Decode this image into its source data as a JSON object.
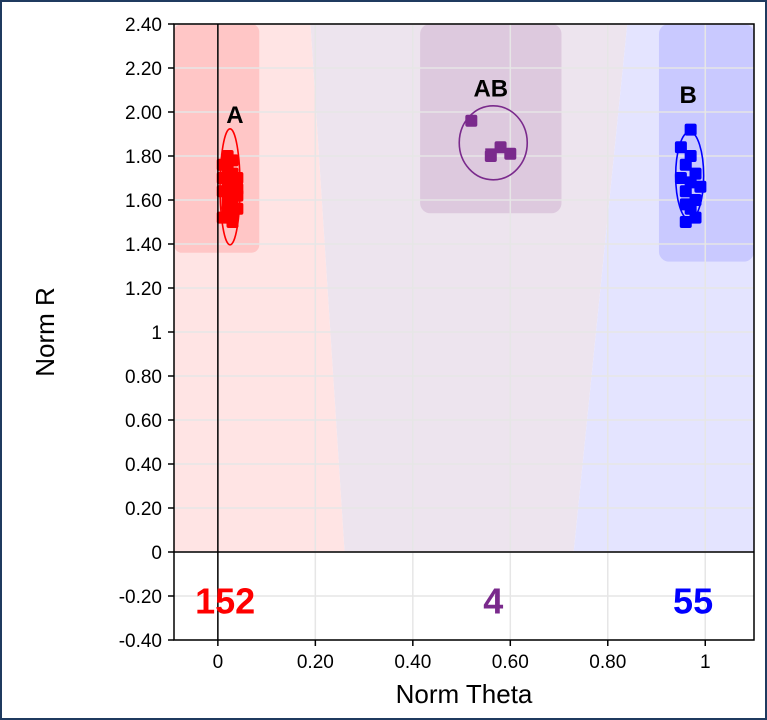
{
  "chart_data": {
    "type": "scatter",
    "xlabel": "Norm Theta",
    "ylabel": "Norm R",
    "xlim": [
      -0.09,
      1.1
    ],
    "ylim": [
      -0.4,
      2.4
    ],
    "x_ticks": [
      "0",
      "0.20",
      "0.40",
      "0.60",
      "0.80",
      "1"
    ],
    "y_ticks": [
      "2.40",
      "2.20",
      "2.00",
      "1.80",
      "1.60",
      "1.40",
      "1.20",
      "1",
      "0.80",
      "0.60",
      "0.40",
      "0.20",
      "0",
      "-0.20",
      "-0.40"
    ],
    "grid": true,
    "colors": {
      "A": "#ff0000",
      "AB": "#7a2a8c",
      "B": "#0000ff",
      "region_A": "#ffe4e4",
      "region_AB": "#ede4ee",
      "region_B": "#e4e4ff",
      "highlight_A": "#ffc6c6",
      "highlight_AB": "#ddc9de",
      "highlight_B": "#c9c9ff"
    },
    "clusters": [
      {
        "name": "A",
        "label": "A",
        "count": "152",
        "points": [
          [
            0.01,
            1.52
          ],
          [
            0.02,
            1.55
          ],
          [
            0.03,
            1.6
          ],
          [
            0.01,
            1.64
          ],
          [
            0.02,
            1.68
          ],
          [
            0.03,
            1.72
          ],
          [
            0.01,
            1.76
          ],
          [
            0.02,
            1.8
          ],
          [
            0.03,
            1.5
          ],
          [
            0.04,
            1.56
          ],
          [
            0.04,
            1.62
          ],
          [
            0.04,
            1.7
          ],
          [
            0.02,
            1.58
          ],
          [
            0.03,
            1.66
          ],
          [
            0.01,
            1.7
          ],
          [
            0.02,
            1.74
          ],
          [
            0.03,
            1.78
          ],
          [
            0.04,
            1.65
          ],
          [
            0.02,
            1.62
          ],
          [
            0.03,
            1.54
          ]
        ]
      },
      {
        "name": "AB",
        "label": "AB",
        "count": "4",
        "points": [
          [
            0.52,
            1.96
          ],
          [
            0.56,
            1.8
          ],
          [
            0.58,
            1.84
          ],
          [
            0.6,
            1.81
          ]
        ]
      },
      {
        "name": "B",
        "label": "B",
        "count": "55",
        "points": [
          [
            0.97,
            1.92
          ],
          [
            0.95,
            1.84
          ],
          [
            0.96,
            1.76
          ],
          [
            0.98,
            1.72
          ],
          [
            0.97,
            1.68
          ],
          [
            0.96,
            1.64
          ],
          [
            0.98,
            1.6
          ],
          [
            0.97,
            1.56
          ],
          [
            0.96,
            1.5
          ],
          [
            0.98,
            1.52
          ],
          [
            0.95,
            1.7
          ],
          [
            0.97,
            1.8
          ],
          [
            0.99,
            1.66
          ],
          [
            0.96,
            1.58
          ]
        ]
      }
    ]
  }
}
